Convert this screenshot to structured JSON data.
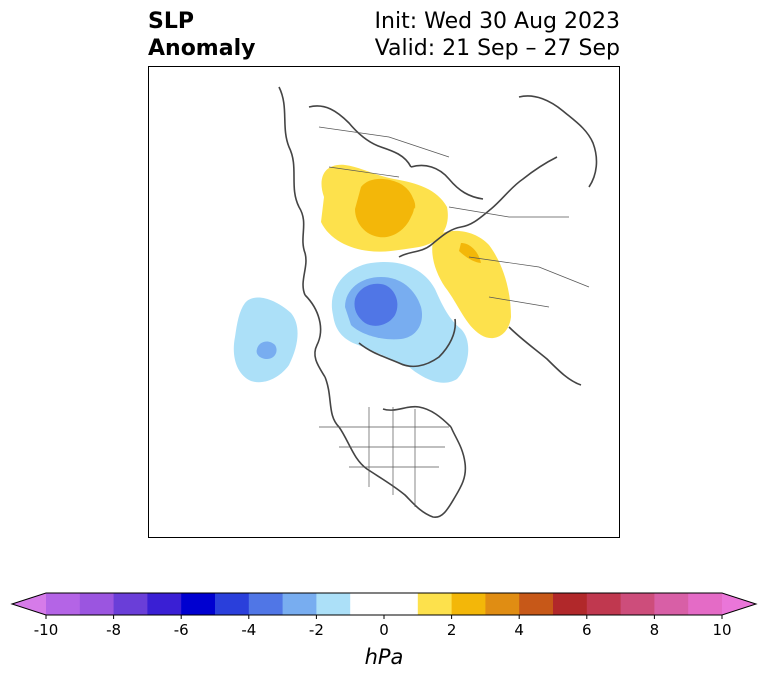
{
  "title": {
    "left_line1": "SLP",
    "left_line2": "Anomaly",
    "right_line1": "Init: Wed 30 Aug 2023",
    "right_line2": "Valid: 21 Sep – 27 Sep"
  },
  "map": {
    "projection": "polar-stereographic (north pole)",
    "field": "sea level pressure anomaly",
    "anomalies": [
      {
        "name": "positive-anomaly-eurasia-north",
        "level_hpa": 1,
        "core_hpa": 2
      },
      {
        "name": "positive-anomaly-eurasia-east",
        "level_hpa": 1,
        "core_hpa": 2
      },
      {
        "name": "negative-anomaly-arctic",
        "level_hpa": -1,
        "core_hpa": -4
      },
      {
        "name": "negative-anomaly-gulf-of-alaska",
        "level_hpa": -1,
        "core_hpa": -3
      }
    ]
  },
  "colorbar": {
    "unit": "hPa",
    "ticks": [
      "-10",
      "-8",
      "-6",
      "-4",
      "-2",
      "0",
      "2",
      "4",
      "6",
      "8",
      "10"
    ],
    "low_extend_color": "#d67be9",
    "high_extend_color": "#ea76d9",
    "colors": [
      "#b464e6",
      "#9b55e0",
      "#6a3ed8",
      "#3a1fd4",
      "#0000d0",
      "#2a3fdb",
      "#5076e6",
      "#78adf0",
      "#ace0f8",
      "#ffffff",
      "#ffffff",
      "#fde14c",
      "#f3b709",
      "#e08d13",
      "#c75818",
      "#b1282a",
      "#c0384f",
      "#cd4d7b",
      "#d85fa6",
      "#e46bc6"
    ]
  }
}
